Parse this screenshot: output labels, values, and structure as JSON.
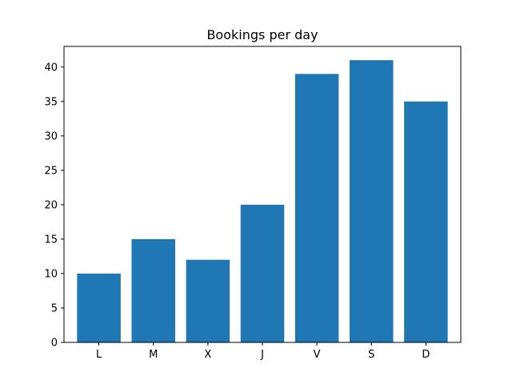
{
  "chart_data": {
    "type": "bar",
    "title": "Bookings per day",
    "xlabel": "",
    "ylabel": "",
    "categories": [
      "L",
      "M",
      "X",
      "J",
      "V",
      "S",
      "D"
    ],
    "values": [
      10,
      15,
      12,
      20,
      39,
      41,
      35
    ],
    "ylim": [
      0,
      43
    ],
    "yticks": [
      0,
      5,
      10,
      15,
      20,
      25,
      30,
      35,
      40
    ],
    "grid": false,
    "legend": "none",
    "bar_color": "#1f77b4"
  }
}
